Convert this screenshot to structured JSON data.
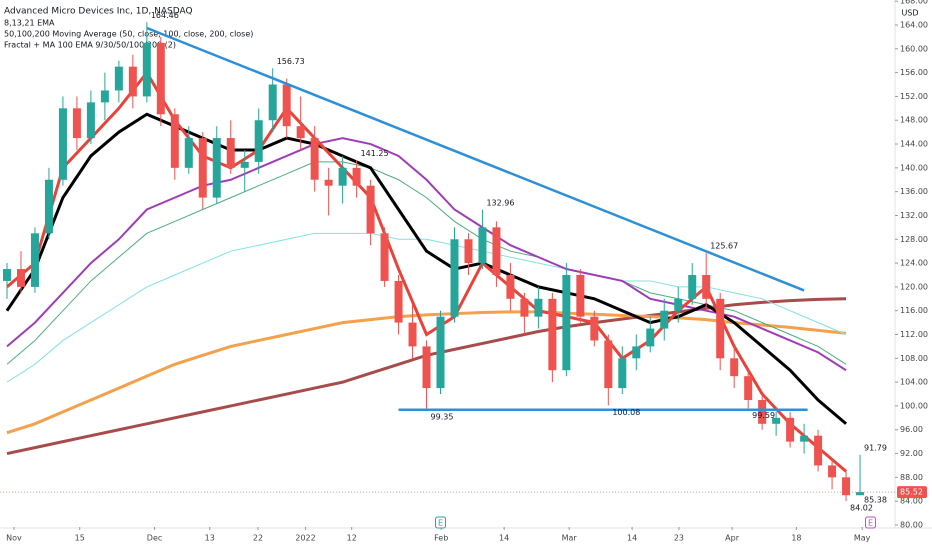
{
  "chart_data": {
    "type": "candlestick",
    "title": "Advanced Micro Devices Inc, 1D, NASDAQ",
    "indicators": [
      "8,13,21 EMA",
      "50,100,200 Moving Average (50, close, 100, close, 200, close)",
      "Fractal + MA 100 EMA 9/30/50/100/200 (2)"
    ],
    "currency": "USD",
    "up_color": "#26a69a",
    "down_color": "#ef5350",
    "x": [
      1,
      3,
      5,
      7,
      9,
      11,
      13,
      15,
      17,
      19,
      21,
      23,
      25,
      27,
      29,
      31,
      33,
      35,
      37,
      39,
      41,
      43,
      45,
      47,
      49,
      51,
      53,
      55,
      57,
      59,
      61,
      63,
      65,
      67,
      69,
      71,
      73,
      75,
      77,
      79,
      81,
      83,
      85,
      87,
      89,
      91,
      93,
      95,
      97,
      99,
      101,
      103,
      105,
      107,
      109,
      111,
      113,
      115,
      117,
      119,
      121,
      123
    ],
    "open": [
      121,
      123,
      120,
      129,
      138,
      150,
      145,
      151,
      153,
      157,
      152,
      161,
      149,
      140,
      145,
      135,
      145,
      140,
      141,
      148,
      154,
      147,
      145,
      138,
      137,
      140,
      137,
      129,
      121,
      114,
      110,
      103,
      115,
      128,
      124,
      130,
      122,
      118,
      115,
      118,
      106,
      122,
      115,
      111,
      103,
      108,
      110,
      113,
      116,
      118,
      122,
      118,
      108,
      105,
      101,
      97,
      98,
      94,
      95,
      90,
      88,
      85
    ],
    "high": [
      124,
      126,
      130,
      140,
      152,
      152,
      153,
      156,
      158,
      159,
      164.46,
      162,
      150,
      147,
      146,
      147,
      148,
      143,
      150,
      156.73,
      155,
      152,
      147,
      140,
      142,
      141.25,
      138,
      130,
      122,
      117,
      111,
      116,
      130,
      129,
      132.96,
      131,
      124,
      119,
      120,
      119,
      124,
      123,
      116,
      112,
      110,
      112,
      115,
      118,
      120,
      124,
      125.67,
      119,
      110,
      106,
      102,
      99,
      99,
      97,
      96,
      91,
      89,
      91.79
    ],
    "low": [
      118,
      119,
      119,
      128,
      137,
      143,
      144,
      148,
      151,
      150,
      151,
      147,
      138,
      139,
      133,
      134,
      139,
      136,
      139,
      146,
      145,
      143,
      136,
      132,
      134,
      135,
      127,
      120,
      112,
      108,
      99.35,
      102,
      114,
      122,
      123,
      120,
      116,
      112,
      113,
      104,
      105,
      114,
      110,
      100.08,
      102,
      106,
      109,
      111,
      114,
      117,
      116,
      106,
      103,
      99.59,
      96,
      95,
      93,
      92,
      89,
      86,
      84.02,
      85
    ],
    "close": [
      123,
      120,
      129,
      138,
      150,
      145,
      151,
      153,
      157,
      152,
      161,
      149,
      140,
      145,
      135,
      145,
      140,
      141,
      148,
      154,
      147,
      145,
      138,
      137,
      140,
      137,
      129,
      121,
      114,
      110,
      103,
      115,
      128,
      124,
      130,
      122,
      118,
      115,
      118,
      106,
      122,
      115,
      111,
      103,
      108,
      110,
      113,
      116,
      118,
      122,
      118,
      108,
      105,
      101,
      97,
      98,
      94,
      95,
      90,
      88,
      85,
      85.52
    ],
    "line_x": [
      1,
      5,
      9,
      13,
      17,
      21,
      25,
      29,
      33,
      37,
      41,
      45,
      49,
      53,
      57,
      61,
      65,
      69,
      73,
      77,
      81,
      85,
      89,
      93,
      97,
      101,
      105,
      109,
      113,
      117,
      121
    ],
    "lines": [
      {
        "color": "#a84b4b",
        "width": 3,
        "values": [
          92,
          93,
          94,
          95,
          96,
          97,
          98,
          99,
          100,
          101,
          102,
          103,
          104,
          105.5,
          107,
          108.5,
          109.5,
          110.5,
          111.5,
          112.5,
          113.3,
          114,
          114.6,
          115.2,
          115.8,
          116.4,
          117,
          117.4,
          117.7,
          117.9,
          118
        ]
      },
      {
        "color": "#f5a04a",
        "width": 3,
        "values": [
          95.5,
          97,
          99,
          101,
          103,
          105,
          107,
          108.5,
          110,
          111,
          112,
          113,
          114,
          114.5,
          115,
          115.3,
          115.5,
          115.7,
          115.8,
          115.8,
          115.6,
          115.4,
          115.2,
          115,
          114.8,
          114.5,
          114,
          113.6,
          113.2,
          112.7,
          112.2
        ]
      },
      {
        "color": "#7fe3e0",
        "width": 1,
        "values": [
          104,
          107,
          111,
          114,
          117,
          120,
          122,
          124,
          126,
          127,
          128,
          129,
          129,
          129,
          128,
          128,
          127,
          126,
          125,
          124,
          123,
          122,
          121,
          121,
          120,
          120,
          119,
          118,
          116,
          114,
          112
        ]
      },
      {
        "color": "#4caf7d",
        "width": 1,
        "values": [
          107,
          111,
          116,
          121,
          125,
          129,
          131,
          133,
          135,
          137,
          139,
          141,
          141,
          140,
          138,
          135,
          131,
          128,
          126,
          125,
          123,
          122,
          121,
          119,
          118,
          117,
          116,
          114,
          112,
          110,
          107
        ]
      },
      {
        "color": "#a03cb8",
        "width": 2,
        "values": [
          110,
          114,
          119,
          124,
          128,
          133,
          135,
          137,
          138,
          140,
          142,
          144,
          145,
          144,
          142,
          138,
          133,
          130,
          127,
          125,
          123,
          122,
          121,
          118,
          117,
          116,
          115,
          113,
          111,
          109,
          106
        ]
      },
      {
        "color": "#000000",
        "width": 3,
        "values": [
          116,
          123,
          135,
          142,
          146,
          149,
          147,
          145,
          143,
          143,
          145,
          144,
          142,
          140,
          133,
          126,
          123,
          124,
          122,
          120,
          119,
          118,
          116,
          114,
          115,
          117,
          114,
          110,
          106,
          101,
          97
        ]
      },
      {
        "color": "#e8433a",
        "width": 3,
        "values": [
          120,
          124,
          140,
          145,
          150,
          156,
          148,
          142,
          140,
          143,
          150,
          145,
          140,
          135,
          123,
          112,
          115,
          124,
          120,
          116,
          115,
          114,
          108,
          111,
          116,
          120,
          110,
          102,
          97,
          93,
          89
        ]
      }
    ],
    "trendlines": [
      {
        "color": "#2d8fd8",
        "x": [
          21,
          115
        ],
        "y": [
          163.5,
          119.4
        ]
      },
      {
        "color": "#2d8fd8",
        "x": [
          57,
          115.5
        ],
        "y": [
          99.35,
          99.35
        ]
      }
    ],
    "annotations": [
      {
        "x": 21,
        "value": 164.46
      },
      {
        "x": 39,
        "value": 156.73
      },
      {
        "x": 51,
        "value": 141.25
      },
      {
        "x": 69,
        "value": 132.96
      },
      {
        "x": 101,
        "value": 125.67
      },
      {
        "x": 61,
        "value": 99.35
      },
      {
        "x": 87,
        "value": 100.08
      },
      {
        "x": 107,
        "value": 99.59
      },
      {
        "x": 123,
        "value": 91.79
      },
      {
        "x": 121,
        "value": 84.02
      },
      {
        "x": 123,
        "value": 85.38
      }
    ],
    "last_price": 85.52,
    "earnings": [
      {
        "x": 63,
        "label": "E"
      },
      {
        "x": 124.5,
        "label": "E"
      }
    ],
    "xlim": [
      0,
      128
    ],
    "xticks": [
      {
        "value": 2,
        "label": "Nov"
      },
      {
        "value": 11.4,
        "label": "15"
      },
      {
        "value": 22.1,
        "label": "Dec"
      },
      {
        "value": 30,
        "label": "13"
      },
      {
        "value": 36.9,
        "label": "22"
      },
      {
        "value": 43.7,
        "label": "2022"
      },
      {
        "value": 50.3,
        "label": "12"
      },
      {
        "value": 63.1,
        "label": "Feb"
      },
      {
        "value": 72.1,
        "label": "14"
      },
      {
        "value": 81.4,
        "label": "Mar"
      },
      {
        "value": 90.4,
        "label": "14"
      },
      {
        "value": 97.1,
        "label": "23"
      },
      {
        "value": 104.7,
        "label": "Apr"
      },
      {
        "value": 113.9,
        "label": "18"
      },
      {
        "value": 123.3,
        "label": "May"
      }
    ],
    "ylim": [
      79.66,
      168.2
    ],
    "yticks": [
      {
        "value": 80,
        "label": "80.00"
      },
      {
        "value": 84,
        "label": "84.00"
      },
      {
        "value": 88,
        "label": "88.00"
      },
      {
        "value": 92,
        "label": "92.00"
      },
      {
        "value": 96,
        "label": "96.00"
      },
      {
        "value": 100,
        "label": "100.00"
      },
      {
        "value": 104,
        "label": "104.00"
      },
      {
        "value": 108,
        "label": "108.00"
      },
      {
        "value": 112,
        "label": "112.00"
      },
      {
        "value": 116,
        "label": "116.00"
      },
      {
        "value": 120,
        "label": "120.00"
      },
      {
        "value": 124,
        "label": "124.00"
      },
      {
        "value": 128,
        "label": "128.00"
      },
      {
        "value": 132,
        "label": "132.00"
      },
      {
        "value": 136,
        "label": "136.00"
      },
      {
        "value": 140,
        "label": "140.00"
      },
      {
        "value": 144,
        "label": "144.00"
      },
      {
        "value": 148,
        "label": "148.00"
      },
      {
        "value": 152,
        "label": "152.00"
      },
      {
        "value": 156,
        "label": "156.00"
      },
      {
        "value": 160,
        "label": "160.00"
      },
      {
        "value": 164,
        "label": "164.00"
      },
      {
        "value": 168,
        "label": "168.00"
      }
    ]
  }
}
